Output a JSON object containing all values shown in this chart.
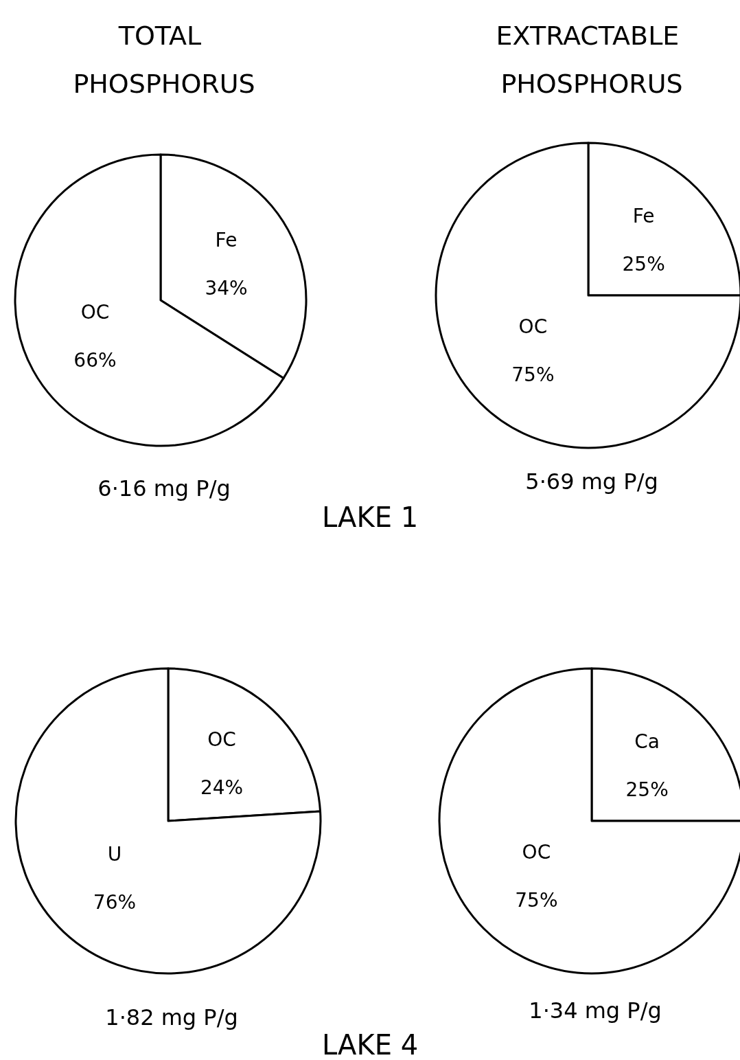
{
  "chart_data": [
    {
      "type": "pie",
      "title": "TOTAL PHOSPHORUS",
      "xlabel": "6·16 mg P/g",
      "annotations": [
        "LAKE 1"
      ],
      "categories": [
        "Fe",
        "OC"
      ],
      "values": [
        34,
        66
      ],
      "value_labels": [
        "34%",
        "66%"
      ],
      "colors": [
        "#ffffff",
        "#ffffff"
      ]
    },
    {
      "type": "pie",
      "title": "EXTRACTABLE PHOSPHORUS",
      "xlabel": "5·69 mg P/g",
      "categories": [
        "Fe",
        "OC"
      ],
      "values": [
        25,
        75
      ],
      "value_labels": [
        "25%",
        "75%"
      ],
      "colors": [
        "#ffffff",
        "#ffffff"
      ]
    },
    {
      "type": "pie",
      "xlabel": "1·82 mg P/g",
      "annotations": [
        "LAKE 4"
      ],
      "categories": [
        "OC",
        "U"
      ],
      "values": [
        24,
        76
      ],
      "value_labels": [
        "24%",
        "76%"
      ],
      "colors": [
        "#ffffff",
        "#ffffff"
      ]
    },
    {
      "type": "pie",
      "xlabel": "1·34 mg P/g",
      "categories": [
        "Ca",
        "OC"
      ],
      "values": [
        25,
        75
      ],
      "value_labels": [
        "25%",
        "75%"
      ],
      "colors": [
        "#ffffff",
        "#ffffff"
      ]
    }
  ]
}
